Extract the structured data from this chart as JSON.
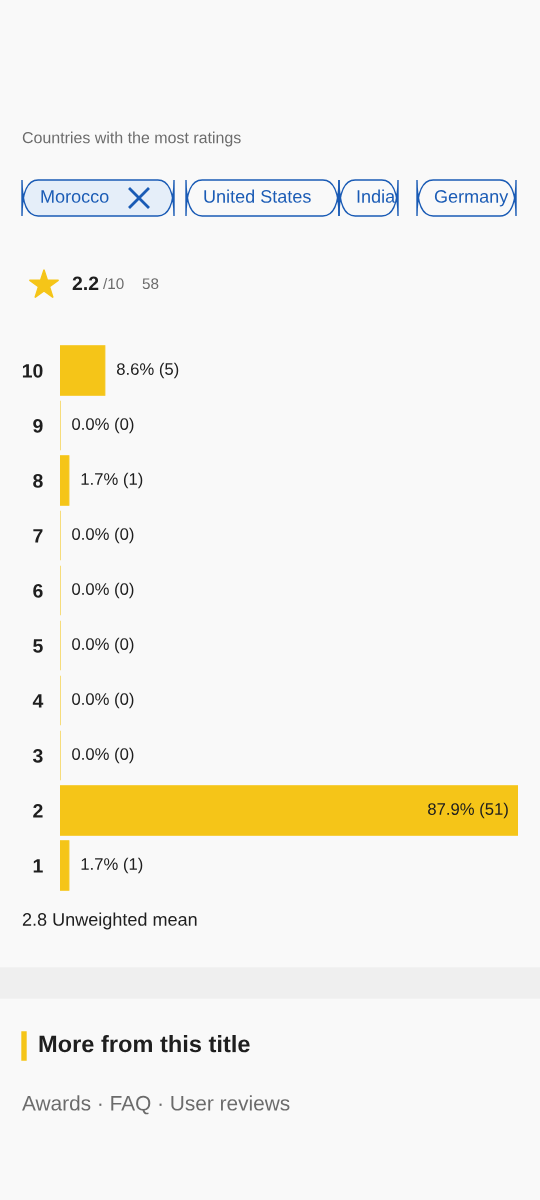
{
  "chart_data": {
    "type": "bar",
    "orientation": "horizontal",
    "subtitle": "Countries with the most ratings",
    "categories": [
      "10",
      "9",
      "8",
      "7",
      "6",
      "5",
      "4",
      "3",
      "2",
      "1"
    ],
    "values": [
      8.6,
      0.0,
      1.7,
      0.0,
      0.0,
      0.0,
      0.0,
      0.0,
      87.9,
      1.7
    ],
    "value_labels": [
      "8.6% (5)",
      "0.0% (0)",
      "1.7% (1)",
      "0.0% (0)",
      "0.0% (0)",
      "0.0% (0)",
      "0.0% (0)",
      "0.0% (0)",
      "87.9% (51)",
      "1.7% (1)"
    ],
    "color": "#f5c518",
    "annotations": [
      "Morocco",
      "United States",
      "India",
      "Germany",
      "2.2/10",
      "58",
      "2.8 Unweighted mean",
      "More from this title",
      "Awards · FAQ · User reviews"
    ]
  }
}
